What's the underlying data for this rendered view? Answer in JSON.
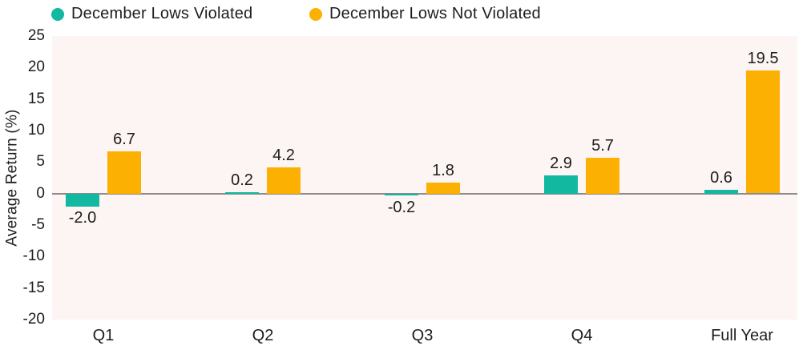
{
  "chart_data": {
    "type": "bar",
    "title": "",
    "categories": [
      "Q1",
      "Q2",
      "Q3",
      "Q4",
      "Full Year"
    ],
    "series": [
      {
        "name": "December Lows Violated",
        "color": "#12b8a0",
        "values": [
          -2.0,
          0.2,
          -0.2,
          2.9,
          0.6
        ]
      },
      {
        "name": "December Lows Not Violated",
        "color": "#fcb001",
        "values": [
          6.7,
          4.2,
          1.8,
          5.7,
          19.5
        ]
      }
    ],
    "value_labels": {
      "December Lows Violated": [
        "-2.0",
        "0.2",
        "-0.2",
        "2.9",
        "0.6"
      ],
      "December Lows Not Violated": [
        "6.7",
        "4.2",
        "1.8",
        "5.7",
        "19.5"
      ]
    },
    "xlabel": "",
    "ylabel": "Average Return (%)",
    "ylim": [
      -20,
      25
    ],
    "yticks": [
      25,
      20,
      15,
      10,
      5,
      0,
      -5,
      -10,
      -15,
      -20
    ],
    "grid": false,
    "legend_position": "top-left",
    "colors": {
      "plot_background": "#fdf5f3",
      "zero_line": "#8c8c8c",
      "text": "#1d1d1d",
      "page_background": "#ffffff"
    }
  }
}
